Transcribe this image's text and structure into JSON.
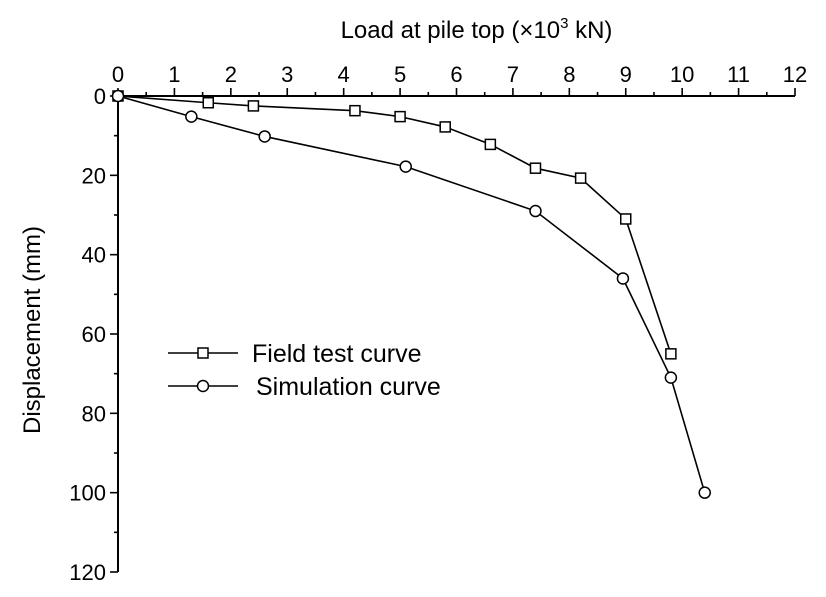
{
  "chart_data": {
    "type": "line",
    "xlabel_main": "Load at pile top (×10",
    "xlabel_sup": "3",
    "xlabel_unit": " kN)",
    "ylabel": "Displacement (mm)",
    "xlim": [
      0,
      12
    ],
    "ylim": [
      0,
      120
    ],
    "y_inverted": true,
    "x_axis_position": "top",
    "x_ticks": [
      "0",
      "1",
      "2",
      "3",
      "4",
      "5",
      "6",
      "7",
      "8",
      "9",
      "10",
      "11",
      "12"
    ],
    "y_ticks": [
      "0",
      "20",
      "40",
      "60",
      "80",
      "100",
      "120"
    ],
    "legend_position": "middle-left",
    "series": [
      {
        "name": "Field test curve",
        "marker": "square",
        "x": [
          0,
          1.6,
          2.4,
          4.2,
          5.0,
          5.8,
          6.6,
          7.4,
          8.2,
          9.0,
          9.8
        ],
        "y": [
          0,
          1.7,
          2.5,
          3.7,
          5.2,
          7.8,
          12.2,
          18.2,
          20.7,
          31.0,
          65.0
        ]
      },
      {
        "name": "Simulation curve",
        "marker": "circle",
        "x": [
          0,
          1.3,
          2.6,
          5.1,
          7.4,
          8.95,
          9.8,
          10.4
        ],
        "y": [
          0,
          5.2,
          10.2,
          17.8,
          29.0,
          46.0,
          71.0,
          100.0
        ]
      }
    ]
  }
}
